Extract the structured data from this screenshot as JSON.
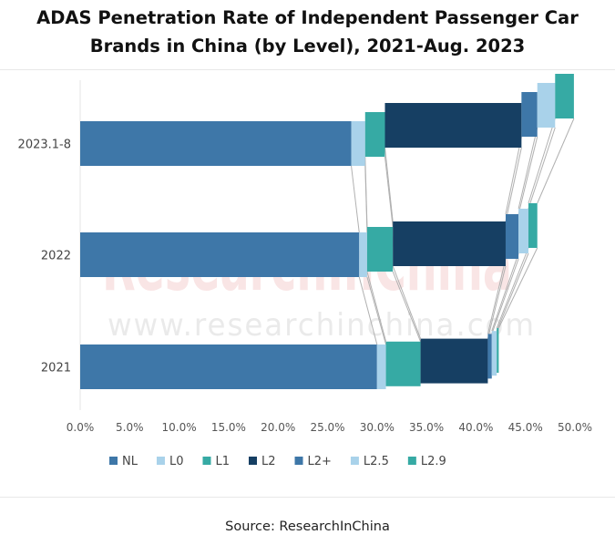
{
  "chart_data": {
    "type": "bar",
    "orientation": "horizontal",
    "stacked": true,
    "title_lines": [
      "ADAS Penetration Rate of Independent Passenger Car",
      "Brands in China (by Level), 2021-Aug. 2023"
    ],
    "categories": [
      "2023.1-8",
      "2022",
      "2021"
    ],
    "series": [
      {
        "name": "NL",
        "color": "#3e77a8",
        "values": [
          27.4,
          28.2,
          30.0
        ]
      },
      {
        "name": "L0",
        "color": "#a9d2ea",
        "values": [
          1.4,
          0.8,
          0.9
        ]
      },
      {
        "name": "L1",
        "color": "#36aaa4",
        "values": [
          2.0,
          2.6,
          3.5
        ]
      },
      {
        "name": "L2",
        "color": "#163f63",
        "values": [
          13.8,
          11.4,
          6.8
        ]
      },
      {
        "name": "L2+",
        "color": "#3e77a8",
        "values": [
          1.6,
          1.3,
          0.4
        ]
      },
      {
        "name": "L2.5",
        "color": "#a9d2ea",
        "values": [
          1.8,
          1.0,
          0.5
        ]
      },
      {
        "name": "L2.9",
        "color": "#36aaa4",
        "values": [
          1.9,
          0.9,
          0.2
        ]
      }
    ],
    "x_ticks": [
      "0.0%",
      "5.0%",
      "10.0%",
      "15.0%",
      "20.0%",
      "25.0%",
      "30.0%",
      "35.0%",
      "40.0%",
      "45.0%",
      "50.0%"
    ],
    "xlim": [
      0,
      50
    ],
    "legend_position": "bottom",
    "watermark": [
      "ResearchInChina",
      "www.researchinchina.com"
    ]
  },
  "source": "Source: ResearchInChina"
}
